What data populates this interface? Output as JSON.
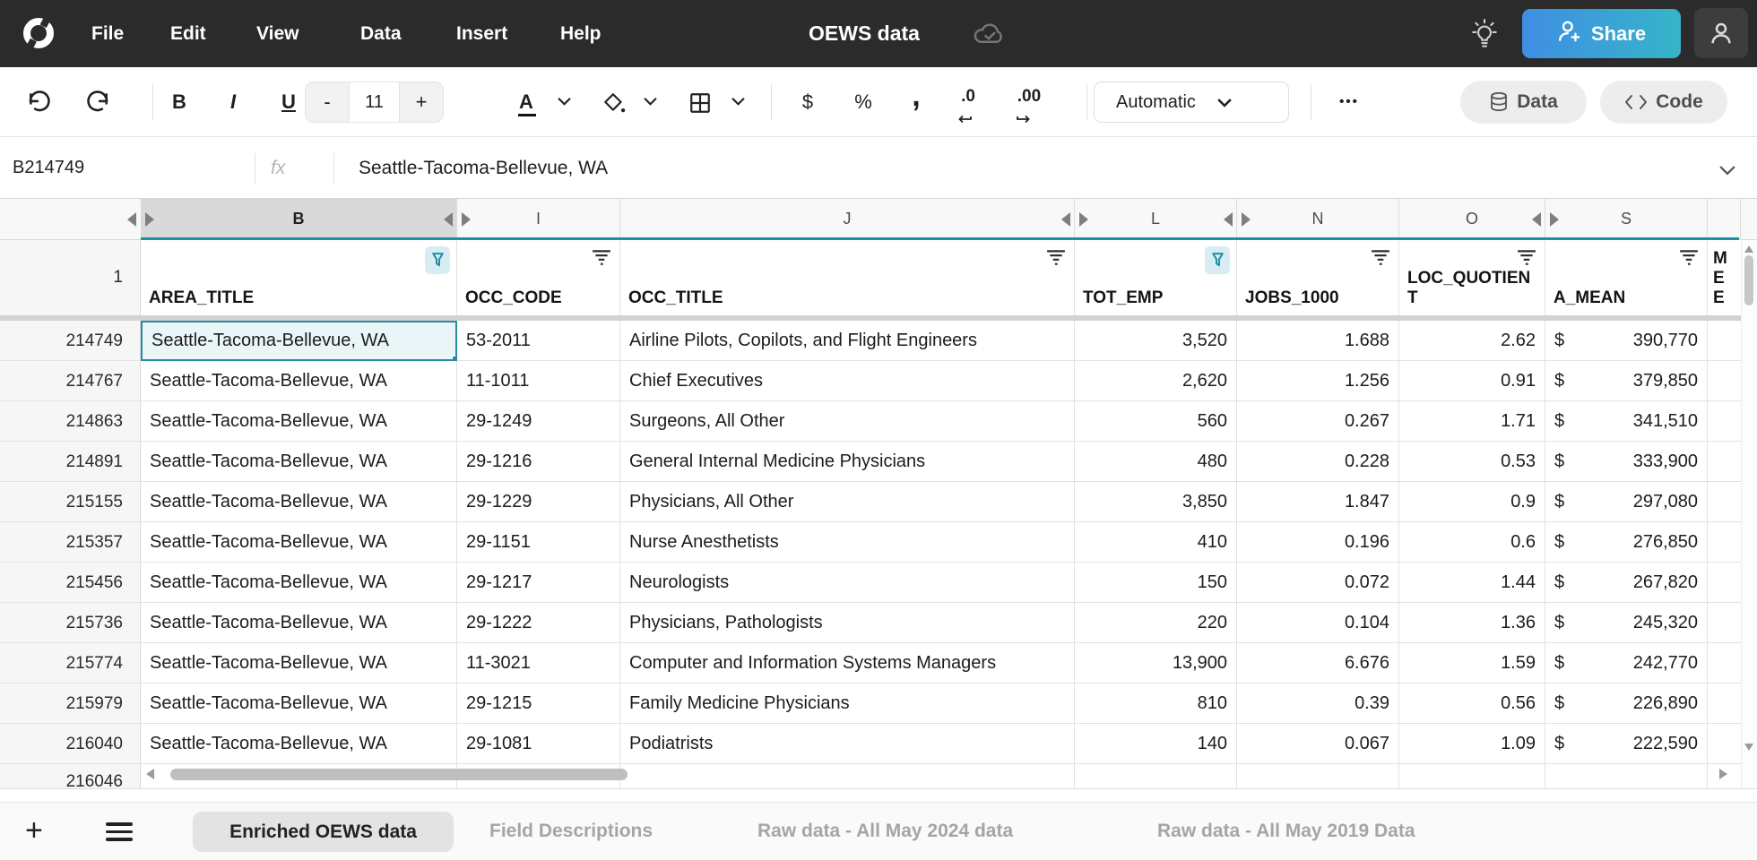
{
  "colors": {
    "topbar_bg": "#2b2b2b",
    "accent_teal": "#1e8fa5",
    "selection_teal": "#2b89a0",
    "selection_fill": "#eaf5f8",
    "active_filter_bg": "#d8edf3",
    "share_gradient_start": "#3f8ee3",
    "share_gradient_end": "#35b5c8",
    "active_tab_bg": "#e3e3e3",
    "header_bg": "#f8f8f8",
    "selected_col_bg": "#d9d9d9"
  },
  "topbar": {
    "menu": [
      "File",
      "Edit",
      "View",
      "Data",
      "Insert",
      "Help"
    ],
    "title": "OEWS data",
    "share_label": "Share",
    "icons": [
      "rows-logo",
      "cloud-saved-icon",
      "lightbulb-icon",
      "avatar-icon"
    ]
  },
  "toolbar": {
    "bold": "B",
    "italic": "I",
    "underline": "U",
    "font_size_minus": "-",
    "font_size": "11",
    "font_size_plus": "+",
    "text_color_label": "A",
    "currency": "$",
    "percent": "%",
    "comma": ",",
    "dec_decrease": ".0",
    "dec_increase": ".00",
    "format_value": "Automatic",
    "more": "•••",
    "data_label": "Data",
    "code_label": "Code",
    "icons": [
      "undo-icon",
      "redo-icon",
      "fill-color-icon",
      "borders-icon",
      "database-icon",
      "code-icon"
    ]
  },
  "formula_bar": {
    "cell_ref": "B214749",
    "fx_label": "fx",
    "value": "Seattle-Tacoma-Bellevue, WA"
  },
  "grid": {
    "header_row_number": "1",
    "currency_symbol": "$",
    "columns": [
      {
        "letter": "B",
        "header": "AREA_TITLE",
        "filter": "active",
        "selected": true,
        "hidden_before": true
      },
      {
        "letter": "I",
        "header": "OCC_CODE",
        "filter": "inactive",
        "selected": false,
        "hidden_before": true
      },
      {
        "letter": "J",
        "header": "OCC_TITLE",
        "filter": "inactive",
        "selected": false,
        "hidden_before": false
      },
      {
        "letter": "L",
        "header": "TOT_EMP",
        "filter": "active",
        "selected": false,
        "hidden_before": true
      },
      {
        "letter": "N",
        "header": "JOBS_1000",
        "filter": "inactive",
        "selected": false,
        "hidden_before": true
      },
      {
        "letter": "O",
        "header": "LOC_QUOTIENT",
        "filter": "inactive",
        "selected": false,
        "hidden_before": false
      },
      {
        "letter": "S",
        "header": "A_MEAN",
        "filter": "inactive",
        "selected": false,
        "hidden_before": true
      }
    ],
    "partial_column": {
      "line1": "ME",
      "line2": "E"
    },
    "selection": {
      "ref": "B214749"
    },
    "rows": [
      {
        "row": "214749",
        "area_title": "Seattle-Tacoma-Bellevue, WA",
        "occ_code": "53-2011",
        "occ_title": "Airline Pilots, Copilots, and Flight Engineers",
        "tot_emp": "3,520",
        "jobs_1000": "1.688",
        "loc_quotient": "2.62",
        "a_mean": "390,770"
      },
      {
        "row": "214767",
        "area_title": "Seattle-Tacoma-Bellevue, WA",
        "occ_code": "11-1011",
        "occ_title": "Chief Executives",
        "tot_emp": "2,620",
        "jobs_1000": "1.256",
        "loc_quotient": "0.91",
        "a_mean": "379,850"
      },
      {
        "row": "214863",
        "area_title": "Seattle-Tacoma-Bellevue, WA",
        "occ_code": "29-1249",
        "occ_title": "Surgeons, All Other",
        "tot_emp": "560",
        "jobs_1000": "0.267",
        "loc_quotient": "1.71",
        "a_mean": "341,510"
      },
      {
        "row": "214891",
        "area_title": "Seattle-Tacoma-Bellevue, WA",
        "occ_code": "29-1216",
        "occ_title": "General Internal Medicine Physicians",
        "tot_emp": "480",
        "jobs_1000": "0.228",
        "loc_quotient": "0.53",
        "a_mean": "333,900"
      },
      {
        "row": "215155",
        "area_title": "Seattle-Tacoma-Bellevue, WA",
        "occ_code": "29-1229",
        "occ_title": "Physicians, All Other",
        "tot_emp": "3,850",
        "jobs_1000": "1.847",
        "loc_quotient": "0.9",
        "a_mean": "297,080"
      },
      {
        "row": "215357",
        "area_title": "Seattle-Tacoma-Bellevue, WA",
        "occ_code": "29-1151",
        "occ_title": "Nurse Anesthetists",
        "tot_emp": "410",
        "jobs_1000": "0.196",
        "loc_quotient": "0.6",
        "a_mean": "276,850"
      },
      {
        "row": "215456",
        "area_title": "Seattle-Tacoma-Bellevue, WA",
        "occ_code": "29-1217",
        "occ_title": "Neurologists",
        "tot_emp": "150",
        "jobs_1000": "0.072",
        "loc_quotient": "1.44",
        "a_mean": "267,820"
      },
      {
        "row": "215736",
        "area_title": "Seattle-Tacoma-Bellevue, WA",
        "occ_code": "29-1222",
        "occ_title": "Physicians, Pathologists",
        "tot_emp": "220",
        "jobs_1000": "0.104",
        "loc_quotient": "1.36",
        "a_mean": "245,320"
      },
      {
        "row": "215774",
        "area_title": "Seattle-Tacoma-Bellevue, WA",
        "occ_code": "11-3021",
        "occ_title": "Computer and Information Systems Managers",
        "tot_emp": "13,900",
        "jobs_1000": "6.676",
        "loc_quotient": "1.59",
        "a_mean": "242,770"
      },
      {
        "row": "215979",
        "area_title": "Seattle-Tacoma-Bellevue, WA",
        "occ_code": "29-1215",
        "occ_title": "Family Medicine Physicians",
        "tot_emp": "810",
        "jobs_1000": "0.39",
        "loc_quotient": "0.56",
        "a_mean": "226,890"
      },
      {
        "row": "216040",
        "area_title": "Seattle-Tacoma-Bellevue, WA",
        "occ_code": "29-1081",
        "occ_title": "Podiatrists",
        "tot_emp": "140",
        "jobs_1000": "0.067",
        "loc_quotient": "1.09",
        "a_mean": "222,590"
      }
    ],
    "partial_row_number": "216046"
  },
  "tabs": {
    "items": [
      {
        "label": "Enriched OEWS data",
        "active": true
      },
      {
        "label": "Field Descriptions",
        "active": false
      },
      {
        "label": "Raw data - All May 2024 data",
        "active": false
      },
      {
        "label": "Raw data - All May 2019 Data",
        "active": false
      }
    ]
  }
}
